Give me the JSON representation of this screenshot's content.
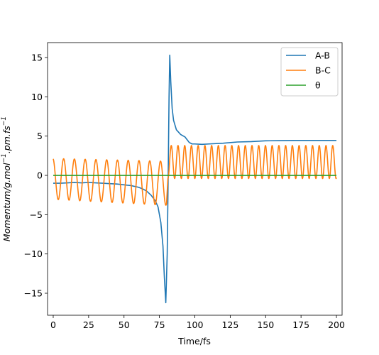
{
  "chart_data": {
    "type": "line",
    "xlabel": "Time/fs",
    "ylabel": "Momentum/g.mol",
    "ylabel_sup1": "−1",
    "ylabel_mid": ".pm.fs",
    "ylabel_sup2": "−1",
    "xlim": [
      -4,
      204
    ],
    "ylim": [
      -17.8,
      16.9
    ],
    "xticks": [
      0,
      25,
      50,
      75,
      100,
      125,
      150,
      175,
      200
    ],
    "yticks": [
      -15,
      -10,
      -5,
      0,
      5,
      10,
      15
    ],
    "xtick_labels": [
      "0",
      "25",
      "50",
      "75",
      "100",
      "125",
      "150",
      "175",
      "200"
    ],
    "ytick_labels": [
      "−15",
      "−10",
      "−5",
      "0",
      "5",
      "10",
      "15"
    ],
    "legend_position": "top-right",
    "grid": false,
    "series": [
      {
        "name": "A-B",
        "color": "#1f77b4",
        "points": [
          [
            0,
            -1.0
          ],
          [
            5,
            -1.0
          ],
          [
            10,
            -0.95
          ],
          [
            15,
            -0.9
          ],
          [
            20,
            -0.95
          ],
          [
            25,
            -0.9
          ],
          [
            30,
            -0.95
          ],
          [
            35,
            -1.0
          ],
          [
            40,
            -1.05
          ],
          [
            45,
            -1.1
          ],
          [
            50,
            -1.2
          ],
          [
            55,
            -1.3
          ],
          [
            60,
            -1.5
          ],
          [
            63,
            -1.7
          ],
          [
            66,
            -2.0
          ],
          [
            69,
            -2.5
          ],
          [
            72,
            -3.2
          ],
          [
            74,
            -4.0
          ],
          [
            76,
            -6.0
          ],
          [
            77.5,
            -9.0
          ],
          [
            78.5,
            -13.0
          ],
          [
            79.5,
            -16.2
          ],
          [
            80.5,
            -10.0
          ],
          [
            81.2,
            0.0
          ],
          [
            81.8,
            10.0
          ],
          [
            82.3,
            15.3
          ],
          [
            83,
            12.0
          ],
          [
            84,
            8.5
          ],
          [
            85,
            7.0
          ],
          [
            87,
            5.8
          ],
          [
            90,
            5.2
          ],
          [
            93,
            4.9
          ],
          [
            96,
            4.2
          ],
          [
            98,
            4.0
          ],
          [
            100,
            4.0
          ],
          [
            105,
            3.95
          ],
          [
            110,
            4.0
          ],
          [
            120,
            4.1
          ],
          [
            130,
            4.25
          ],
          [
            140,
            4.3
          ],
          [
            150,
            4.4
          ],
          [
            160,
            4.42
          ],
          [
            170,
            4.45
          ],
          [
            180,
            4.45
          ],
          [
            190,
            4.45
          ],
          [
            200,
            4.45
          ]
        ]
      },
      {
        "name": "B-C",
        "color": "#ff7f0e",
        "osc_pre": {
          "x_start": 0,
          "x_end": 80,
          "period": 7.6,
          "amp_start": 2.6,
          "amp_end": 2.8,
          "center_start": -0.45,
          "center_end": -1.0,
          "phase_start_value": 2.1
        },
        "osc_post": {
          "x_start": 81,
          "x_end": 200,
          "period": 4.75,
          "amp": 2.1,
          "center": 1.7
        }
      },
      {
        "name": "θ",
        "color": "#2ca02c",
        "points": [
          [
            0,
            0.0
          ],
          [
            200,
            0.0
          ]
        ]
      }
    ]
  }
}
